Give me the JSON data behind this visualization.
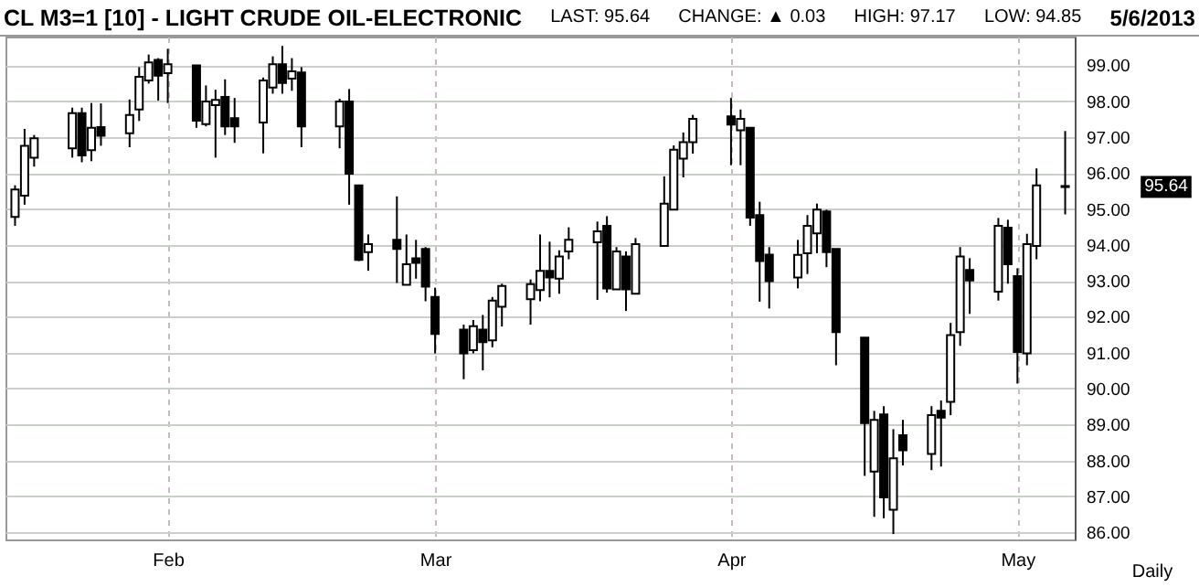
{
  "chart_data": {
    "type": "candlestick",
    "title": "CL M3=1 [10] - LIGHT CRUDE OIL-ELECTRONIC",
    "xlabel": "Daily",
    "color": "#000000",
    "grid": true,
    "annotations": [
      "LAST: 95.64",
      "CHANGE: ▲ 0.03",
      "HIGH: 97.17",
      "LOW: 94.85",
      "5/6/2013",
      "95.64"
    ],
    "xlim": [
      "2013-01-15",
      "2013-05-07"
    ],
    "x": [
      "2013-01-16",
      "2013-01-17",
      "2013-01-18",
      "2013-01-22",
      "2013-01-23",
      "2013-01-24",
      "2013-01-25",
      "2013-01-28",
      "2013-01-29",
      "2013-01-30",
      "2013-01-31",
      "2013-02-01",
      "2013-02-04",
      "2013-02-05",
      "2013-02-06",
      "2013-02-07",
      "2013-02-08",
      "2013-02-11",
      "2013-02-12",
      "2013-02-13",
      "2013-02-14",
      "2013-02-15",
      "2013-02-19",
      "2013-02-20",
      "2013-02-21",
      "2013-02-22",
      "2013-02-25",
      "2013-02-26",
      "2013-02-27",
      "2013-02-28",
      "2013-03-01",
      "2013-03-04",
      "2013-03-05",
      "2013-03-06",
      "2013-03-07",
      "2013-03-08",
      "2013-03-11",
      "2013-03-12",
      "2013-03-13",
      "2013-03-14",
      "2013-03-15",
      "2013-03-18",
      "2013-03-19",
      "2013-03-20",
      "2013-03-21",
      "2013-03-22",
      "2013-03-25",
      "2013-03-26",
      "2013-03-27",
      "2013-03-28",
      "2013-04-01",
      "2013-04-02",
      "2013-04-03",
      "2013-04-04",
      "2013-04-05",
      "2013-04-08",
      "2013-04-09",
      "2013-04-10",
      "2013-04-11",
      "2013-04-12",
      "2013-04-15",
      "2013-04-16",
      "2013-04-17",
      "2013-04-18",
      "2013-04-19",
      "2013-04-22",
      "2013-04-23",
      "2013-04-24",
      "2013-04-25",
      "2013-04-26",
      "2013-04-29",
      "2013-04-30",
      "2013-05-01",
      "2013-05-02",
      "2013-05-03",
      "2013-05-06"
    ],
    "ohlc": [
      [
        94.78,
        95.66,
        94.53,
        95.54
      ],
      [
        95.37,
        97.23,
        95.12,
        96.76
      ],
      [
        96.43,
        97.06,
        96.18,
        96.97
      ],
      [
        96.69,
        97.82,
        96.43,
        97.67
      ],
      [
        97.67,
        97.82,
        96.3,
        96.49
      ],
      [
        96.64,
        97.95,
        96.33,
        97.26
      ],
      [
        97.28,
        97.94,
        96.76,
        97.04
      ],
      [
        97.11,
        98.05,
        96.72,
        97.62
      ],
      [
        97.77,
        98.95,
        97.45,
        98.68
      ],
      [
        98.58,
        99.3,
        98.49,
        99.08
      ],
      [
        99.15,
        99.2,
        98.02,
        98.71
      ],
      [
        98.78,
        99.46,
        97.95,
        99.03
      ],
      [
        99.0,
        99.0,
        97.26,
        97.46
      ],
      [
        97.36,
        98.44,
        97.3,
        97.99
      ],
      [
        97.89,
        98.32,
        96.43,
        98.04
      ],
      [
        98.12,
        98.61,
        97.06,
        97.3
      ],
      [
        97.53,
        98.09,
        96.84,
        97.3
      ],
      [
        97.41,
        98.66,
        96.55,
        98.58
      ],
      [
        98.38,
        99.25,
        98.21,
        99.03
      ],
      [
        99.03,
        99.54,
        98.21,
        98.51
      ],
      [
        98.63,
        99.2,
        98.29,
        98.83
      ],
      [
        98.8,
        98.95,
        96.72,
        97.3
      ],
      [
        97.3,
        98.07,
        96.69,
        97.99
      ],
      [
        97.99,
        98.34,
        95.12,
        95.98
      ],
      [
        95.66,
        95.66,
        93.55,
        93.58
      ],
      [
        93.8,
        94.29,
        93.28,
        94.02
      ],
      [
        94.14,
        95.35,
        92.94,
        93.89
      ],
      [
        92.89,
        94.29,
        92.89,
        93.46
      ],
      [
        93.63,
        94.14,
        93.06,
        93.5
      ],
      [
        93.89,
        93.94,
        92.43,
        92.84
      ],
      [
        92.55,
        92.81,
        90.98,
        91.52
      ],
      [
        91.64,
        91.78,
        90.26,
        90.98
      ],
      [
        91.07,
        91.91,
        90.98,
        91.74
      ],
      [
        91.64,
        92.05,
        90.51,
        91.29
      ],
      [
        91.34,
        92.55,
        91.15,
        92.45
      ],
      [
        92.28,
        92.92,
        91.73,
        92.86
      ],
      [
        92.49,
        93.04,
        91.78,
        92.91
      ],
      [
        92.74,
        94.29,
        92.43,
        93.28
      ],
      [
        93.28,
        94.09,
        92.54,
        93.09
      ],
      [
        93.06,
        93.85,
        92.64,
        93.68
      ],
      [
        93.82,
        94.49,
        93.6,
        94.14
      ],
      [
        94.07,
        94.65,
        92.47,
        94.38
      ],
      [
        94.53,
        94.8,
        92.67,
        92.79
      ],
      [
        92.76,
        93.94,
        92.76,
        93.82
      ],
      [
        93.68,
        93.82,
        92.16,
        92.76
      ],
      [
        92.64,
        94.19,
        92.64,
        94.02
      ],
      [
        93.97,
        95.91,
        93.97,
        95.15
      ],
      [
        94.98,
        96.77,
        94.98,
        96.65
      ],
      [
        96.4,
        97.13,
        95.88,
        96.86
      ],
      [
        96.86,
        97.62,
        96.54,
        97.51
      ],
      [
        97.58,
        98.09,
        96.22,
        97.35
      ],
      [
        97.19,
        97.77,
        96.22,
        97.51
      ],
      [
        97.26,
        97.26,
        94.53,
        94.76
      ],
      [
        94.83,
        95.2,
        92.42,
        93.55
      ],
      [
        93.73,
        93.94,
        92.23,
        92.99
      ],
      [
        93.09,
        94.14,
        92.79,
        93.72
      ],
      [
        93.77,
        94.83,
        93.19,
        94.53
      ],
      [
        94.32,
        95.15,
        93.77,
        94.98
      ],
      [
        94.93,
        94.98,
        93.38,
        93.8
      ],
      [
        93.89,
        93.89,
        90.65,
        91.57
      ],
      [
        91.42,
        91.42,
        87.57,
        89.04
      ],
      [
        87.69,
        89.38,
        86.43,
        89.13
      ],
      [
        89.28,
        89.51,
        86.39,
        86.97
      ],
      [
        86.63,
        88.87,
        85.95,
        88.06
      ],
      [
        88.7,
        89.13,
        87.86,
        88.28
      ],
      [
        88.18,
        89.51,
        87.73,
        89.26
      ],
      [
        89.38,
        89.67,
        87.83,
        89.19
      ],
      [
        89.63,
        91.83,
        89.26,
        91.49
      ],
      [
        91.57,
        93.94,
        91.19,
        93.68
      ],
      [
        93.3,
        93.63,
        92.08,
        93.01
      ],
      [
        92.7,
        94.75,
        92.45,
        94.53
      ],
      [
        94.48,
        94.7,
        92.92,
        93.46
      ],
      [
        93.13,
        93.35,
        90.14,
        91.02
      ],
      [
        90.98,
        94.31,
        90.65,
        94.02
      ],
      [
        93.97,
        96.13,
        93.6,
        95.66
      ],
      [
        95.61,
        97.17,
        94.85,
        95.64
      ]
    ],
    "ylim": [
      85.8,
      99.8
    ],
    "yticks": [
      {
        "value": 86,
        "label": "86.00"
      },
      {
        "value": 87,
        "label": "87.00"
      },
      {
        "value": 88,
        "label": "88.00"
      },
      {
        "value": 89,
        "label": "89.00"
      },
      {
        "value": 90,
        "label": "90.00"
      },
      {
        "value": 91,
        "label": "91.00"
      },
      {
        "value": 92,
        "label": "92.00"
      },
      {
        "value": 93,
        "label": "93.00"
      },
      {
        "value": 94,
        "label": "94.00"
      },
      {
        "value": 95,
        "label": "95.00"
      },
      {
        "value": 96,
        "label": "96.00"
      },
      {
        "value": 97,
        "label": "97.00"
      },
      {
        "value": 98,
        "label": "98.00"
      },
      {
        "value": 99,
        "label": "99.00"
      }
    ],
    "xticks": [
      {
        "value": "2013-02-01",
        "label": "Feb"
      },
      {
        "value": "2013-03-01",
        "label": "Mar"
      },
      {
        "value": "2013-04-01",
        "label": "Apr"
      },
      {
        "value": "2013-05-01",
        "label": "May"
      }
    ]
  }
}
